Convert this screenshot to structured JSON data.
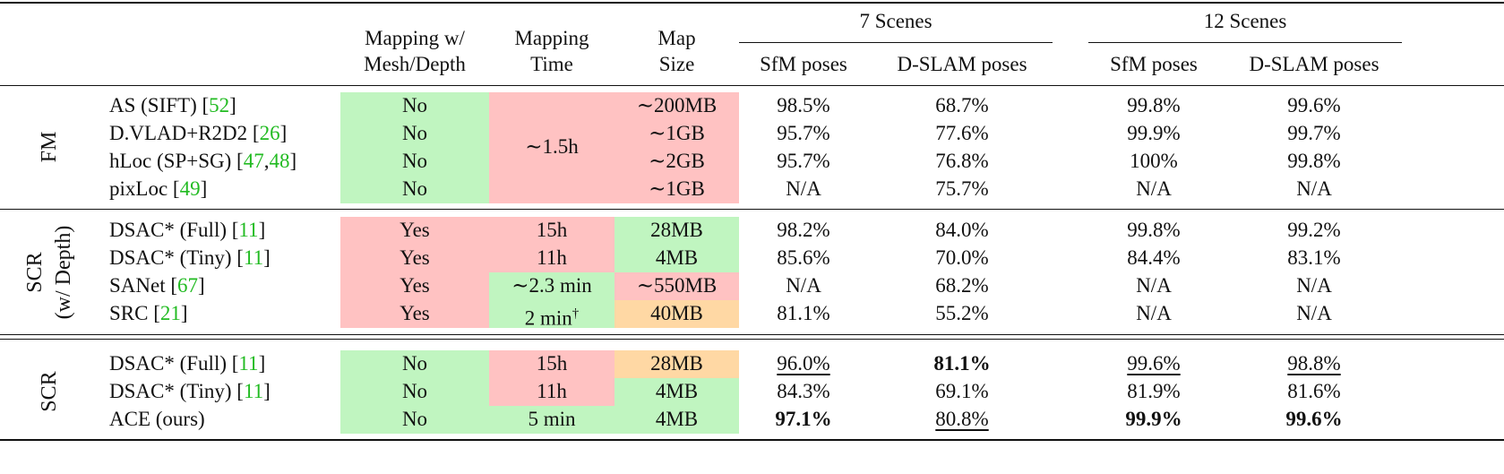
{
  "header": {
    "mapping_mesh": [
      "Mapping w/",
      "Mesh/Depth"
    ],
    "mapping_time": [
      "Mapping",
      "Time"
    ],
    "map_size": [
      "Map",
      "Size"
    ],
    "scenes7": "7 Scenes",
    "scenes12": "12 Scenes",
    "sfm": "SfM poses",
    "dslam": "D-SLAM poses"
  },
  "groups": {
    "fm": "FM",
    "scr_depth": [
      "SCR",
      "(w/ Depth)"
    ],
    "scr": "SCR"
  },
  "shared_time_fm": "∼1.5h",
  "rows": [
    {
      "name": "AS (SIFT) [",
      "refs": [
        "52"
      ],
      "mesh": "No",
      "time": "",
      "size": "∼200MB",
      "s7sfm": "98.5%",
      "s7dslam": "68.7%",
      "s12sfm": "99.8%",
      "s12dslam": "99.6%"
    },
    {
      "name": "D.VLAD+R2D2 [",
      "refs": [
        "26"
      ],
      "mesh": "No",
      "time": "",
      "size": "∼1GB",
      "s7sfm": "95.7%",
      "s7dslam": "77.6%",
      "s12sfm": "99.9%",
      "s12dslam": "99.7%"
    },
    {
      "name": "hLoc (SP+SG) [",
      "refs": [
        "47",
        "48"
      ],
      "mesh": "No",
      "time": "",
      "size": "∼2GB",
      "s7sfm": "95.7%",
      "s7dslam": "76.8%",
      "s12sfm": "100%",
      "s12dslam": "99.8%"
    },
    {
      "name": "pixLoc [",
      "refs": [
        "49"
      ],
      "mesh": "No",
      "time": "",
      "size": "∼1GB",
      "s7sfm": "N/A",
      "s7dslam": "75.7%",
      "s12sfm": "N/A",
      "s12dslam": "N/A"
    },
    {
      "name": "DSAC* (Full) [",
      "refs": [
        "11"
      ],
      "mesh": "Yes",
      "time": "15h",
      "size": "28MB",
      "s7sfm": "98.2%",
      "s7dslam": "84.0%",
      "s12sfm": "99.8%",
      "s12dslam": "99.2%"
    },
    {
      "name": "DSAC* (Tiny) [",
      "refs": [
        "11"
      ],
      "mesh": "Yes",
      "time": "11h",
      "size": "4MB",
      "s7sfm": "85.6%",
      "s7dslam": "70.0%",
      "s12sfm": "84.4%",
      "s12dslam": "83.1%"
    },
    {
      "name": "SANet [",
      "refs": [
        "67"
      ],
      "mesh": "Yes",
      "time": "∼2.3 min",
      "size": "∼550MB",
      "s7sfm": "N/A",
      "s7dslam": "68.2%",
      "s12sfm": "N/A",
      "s12dslam": "N/A"
    },
    {
      "name": "SRC [",
      "refs": [
        "21"
      ],
      "mesh": "Yes",
      "time": "2 min",
      "time_sup": "†",
      "size": "40MB",
      "s7sfm": "81.1%",
      "s7dslam": "55.2%",
      "s12sfm": "N/A",
      "s12dslam": "N/A"
    },
    {
      "name": "DSAC* (Full) [",
      "refs": [
        "11"
      ],
      "mesh": "No",
      "time": "15h",
      "size": "28MB",
      "s7sfm": "96.0%",
      "s7dslam": "81.1%",
      "s12sfm": "99.6%",
      "s12dslam": "98.8%"
    },
    {
      "name": "DSAC* (Tiny) [",
      "refs": [
        "11"
      ],
      "mesh": "No",
      "time": "11h",
      "size": "4MB",
      "s7sfm": "84.3%",
      "s7dslam": "69.1%",
      "s12sfm": "81.9%",
      "s12dslam": "81.6%"
    },
    {
      "name": "ACE (ours)",
      "refs": [],
      "mesh": "No",
      "time": "5 min",
      "size": "4MB",
      "s7sfm": "97.1%",
      "s7dslam": "80.8%",
      "s12sfm": "99.9%",
      "s12dslam": "99.6%"
    }
  ],
  "colors": {
    "green": "#c0f5c0",
    "red": "#ffc2c2",
    "orange": "#ffd8a4",
    "ref": "#22bb22"
  }
}
